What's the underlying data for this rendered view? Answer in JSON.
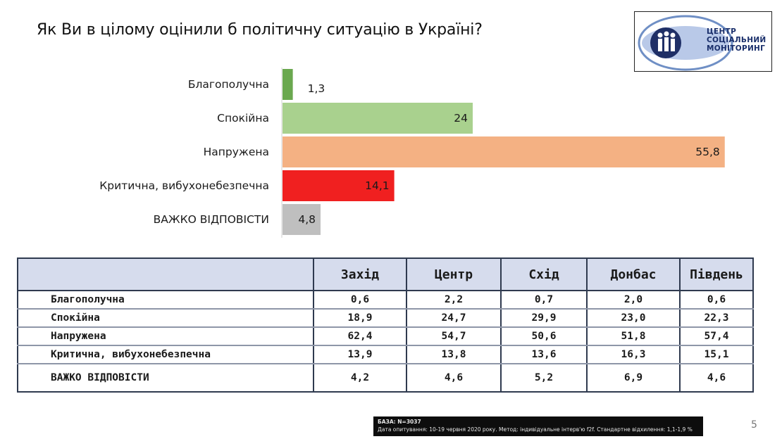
{
  "title": "Як Ви в цілому оцінили б політичну ситуацію в Україні?",
  "logo": {
    "line1": "ЦЕНТР",
    "line2": "СОЦІАЛЬНИЙ",
    "line3": "МОНІТОРИНГ"
  },
  "chart_data": {
    "type": "bar",
    "orientation": "horizontal",
    "categories": [
      "Благополучна",
      "Спокійна",
      "Напружена",
      "Критична, вибухонебезпечна",
      "ВАЖКО ВІДПОВІСТИ"
    ],
    "values": [
      1.3,
      24,
      55.8,
      14.1,
      4.8
    ],
    "value_labels": [
      "1,3",
      "24",
      "55,8",
      "14,1",
      "4,8"
    ],
    "colors": [
      "#6aa84f",
      "#a9d18e",
      "#f4b183",
      "#f02020",
      "#bfbfbf"
    ],
    "xlim": [
      0,
      56
    ],
    "grid": false
  },
  "table": {
    "columns": [
      "Захід",
      "Центр",
      "Схід",
      "Донбас",
      "Південь"
    ],
    "rows": [
      {
        "label": "Благополучна",
        "values": [
          "0,6",
          "2,2",
          "0,7",
          "2,0",
          "0,6"
        ]
      },
      {
        "label": "Спокійна",
        "values": [
          "18,9",
          "24,7",
          "29,9",
          "23,0",
          "22,3"
        ]
      },
      {
        "label": "Напружена",
        "values": [
          "62,4",
          "54,7",
          "50,6",
          "51,8",
          "57,4"
        ]
      },
      {
        "label": "Критична, вибухонебезпечна",
        "values": [
          "13,9",
          "13,8",
          "13,6",
          "16,3",
          "15,1"
        ]
      },
      {
        "label": "ВАЖКО ВІДПОВІСТИ",
        "values": [
          "4,2",
          "4,6",
          "5,2",
          "6,9",
          "4,6"
        ]
      }
    ]
  },
  "footer": {
    "base": "БАЗА: N=3037",
    "details": "Дата опитування: 10-19 червня 2020 року. Метод: індивідуальне інтерв'ю f2f. Стандартне відхилення: 1,1-1,9 %"
  },
  "page_number": "5"
}
